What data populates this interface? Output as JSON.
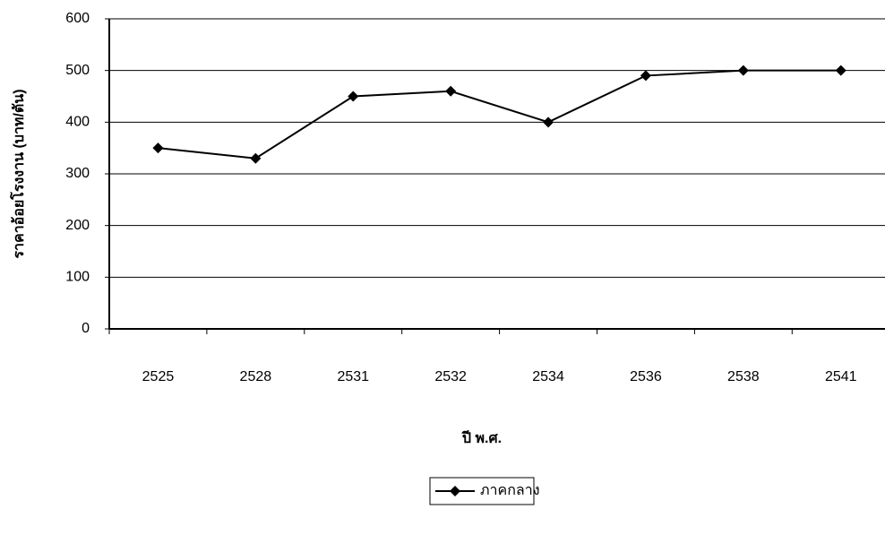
{
  "chart_data": {
    "type": "line",
    "y_label": "ราคาอ้อยโรงงาน (บาท/ตัน)",
    "x_label": "ปี พ.ศ.",
    "categories": [
      "2525",
      "2528",
      "2531",
      "2532",
      "2534",
      "2536",
      "2538",
      "2541"
    ],
    "series": [
      {
        "name": "ภาคกลาง",
        "color": "#000000",
        "values": [
          350,
          330,
          450,
          460,
          400,
          490,
          500,
          500
        ]
      }
    ],
    "ylim": [
      0,
      600
    ],
    "yticks": [
      0,
      100,
      200,
      300,
      400,
      500,
      600
    ],
    "grid": true,
    "legend": "bottom"
  }
}
